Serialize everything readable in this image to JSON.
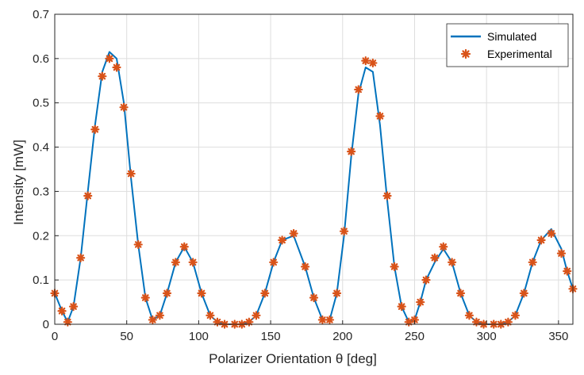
{
  "chart_data": {
    "type": "line",
    "title": "",
    "xlabel": "Polarizer Orientation θ [deg]",
    "ylabel": "Intensity [mW]",
    "xlim": [
      0,
      360
    ],
    "ylim": [
      0,
      0.7
    ],
    "xticks": [
      0,
      50,
      100,
      150,
      200,
      250,
      300,
      350
    ],
    "yticks": [
      0,
      0.1,
      0.2,
      0.3,
      0.4,
      0.5,
      0.6,
      0.7
    ],
    "xtick_labels": [
      "0",
      "50",
      "100",
      "150",
      "200",
      "250",
      "300",
      "350"
    ],
    "ytick_labels": [
      "0",
      "0.1",
      "0.2",
      "0.3",
      "0.4",
      "0.5",
      "0.6",
      "0.7"
    ],
    "grid": true,
    "legend_position": "top-right",
    "series": [
      {
        "name": "Simulated",
        "style": "line",
        "color": "#0072BD",
        "x": [
          0,
          5,
          9,
          13,
          18,
          23,
          28,
          33,
          38,
          43,
          48,
          53,
          58,
          63,
          68,
          73,
          78,
          84,
          90,
          96,
          102,
          108,
          113,
          118,
          125,
          130,
          135,
          140,
          146,
          152,
          158,
          166,
          174,
          180,
          186,
          191,
          196,
          201,
          206,
          211,
          216,
          221,
          226,
          231,
          236,
          241,
          246,
          250,
          254,
          258,
          264,
          270,
          276,
          282,
          288,
          293,
          298,
          305,
          310,
          315,
          320,
          326,
          332,
          338,
          345,
          352,
          356,
          360
        ],
        "values": [
          0.07,
          0.03,
          0.005,
          0.04,
          0.15,
          0.3,
          0.45,
          0.57,
          0.615,
          0.6,
          0.5,
          0.33,
          0.18,
          0.06,
          0.01,
          0.02,
          0.07,
          0.14,
          0.175,
          0.14,
          0.07,
          0.02,
          0.005,
          0.0,
          0.0,
          0.0,
          0.005,
          0.02,
          0.07,
          0.14,
          0.19,
          0.2,
          0.13,
          0.06,
          0.01,
          0.01,
          0.07,
          0.2,
          0.38,
          0.52,
          0.58,
          0.57,
          0.45,
          0.28,
          0.13,
          0.04,
          0.005,
          0.01,
          0.05,
          0.1,
          0.14,
          0.17,
          0.14,
          0.07,
          0.02,
          0.005,
          0.0,
          0.0,
          0.0,
          0.005,
          0.02,
          0.07,
          0.14,
          0.19,
          0.215,
          0.17,
          0.12,
          0.08
        ]
      },
      {
        "name": "Experimental",
        "style": "asterisk-markers",
        "color": "#D95319",
        "x": [
          0,
          5,
          9,
          13,
          18,
          23,
          28,
          33,
          38,
          43,
          48,
          53,
          58,
          63,
          68,
          73,
          78,
          84,
          90,
          96,
          102,
          108,
          113,
          118,
          125,
          130,
          135,
          140,
          146,
          152,
          158,
          166,
          174,
          180,
          186,
          191,
          196,
          201,
          206,
          211,
          216,
          221,
          226,
          231,
          236,
          241,
          246,
          250,
          254,
          258,
          264,
          270,
          276,
          282,
          288,
          293,
          298,
          305,
          310,
          315,
          320,
          326,
          332,
          338,
          345,
          352,
          356,
          360
        ],
        "values": [
          0.07,
          0.03,
          0.005,
          0.04,
          0.15,
          0.29,
          0.44,
          0.56,
          0.6,
          0.58,
          0.49,
          0.34,
          0.18,
          0.06,
          0.01,
          0.02,
          0.07,
          0.14,
          0.175,
          0.14,
          0.07,
          0.02,
          0.005,
          0.0,
          0.0,
          0.0,
          0.005,
          0.02,
          0.07,
          0.14,
          0.19,
          0.205,
          0.13,
          0.06,
          0.01,
          0.01,
          0.07,
          0.21,
          0.39,
          0.53,
          0.595,
          0.59,
          0.47,
          0.29,
          0.13,
          0.04,
          0.005,
          0.01,
          0.05,
          0.1,
          0.15,
          0.175,
          0.14,
          0.07,
          0.02,
          0.005,
          0.0,
          0.0,
          0.0,
          0.005,
          0.02,
          0.07,
          0.14,
          0.19,
          0.205,
          0.16,
          0.12,
          0.08
        ]
      }
    ]
  }
}
